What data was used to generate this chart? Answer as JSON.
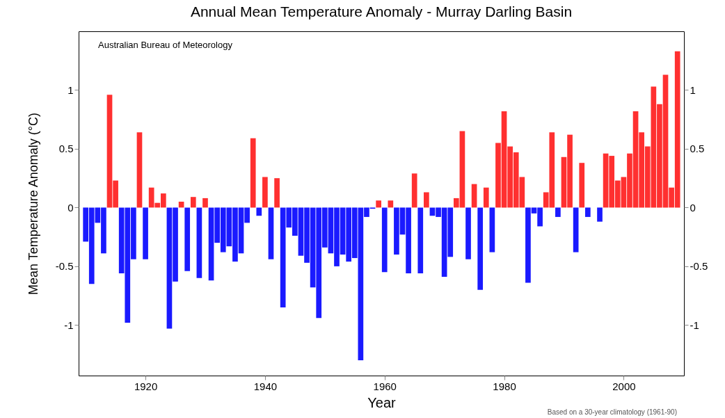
{
  "chart_data": {
    "type": "bar",
    "title": "Annual Mean Temperature Anomaly - Murray Darling Basin",
    "xlabel": "Year",
    "ylabel": "Mean Temperature Anomaly (°C)",
    "annotations": [
      "Australian Bureau of Meteorology",
      "Based on a 30-year climatology (1961-90)"
    ],
    "x": [
      1910,
      1911,
      1912,
      1913,
      1914,
      1915,
      1916,
      1917,
      1918,
      1919,
      1920,
      1921,
      1922,
      1923,
      1924,
      1925,
      1926,
      1927,
      1928,
      1929,
      1930,
      1931,
      1932,
      1933,
      1934,
      1935,
      1936,
      1937,
      1938,
      1939,
      1940,
      1941,
      1942,
      1943,
      1944,
      1945,
      1946,
      1947,
      1948,
      1949,
      1950,
      1951,
      1952,
      1953,
      1954,
      1955,
      1956,
      1957,
      1958,
      1959,
      1960,
      1961,
      1962,
      1963,
      1964,
      1965,
      1966,
      1967,
      1968,
      1969,
      1970,
      1971,
      1972,
      1973,
      1974,
      1975,
      1976,
      1977,
      1978,
      1979,
      1980,
      1981,
      1982,
      1983,
      1984,
      1985,
      1986,
      1987,
      1988,
      1989,
      1990,
      1991,
      1992,
      1993,
      1994,
      1995,
      1996,
      1997,
      1998,
      1999,
      2000,
      2001,
      2002,
      2003,
      2004,
      2005,
      2006,
      2007,
      2008,
      2009
    ],
    "values": [
      -0.29,
      -0.65,
      -0.13,
      -0.39,
      0.96,
      0.23,
      -0.56,
      -0.98,
      -0.44,
      0.64,
      -0.44,
      0.17,
      0.04,
      0.12,
      -1.03,
      -0.63,
      0.05,
      -0.54,
      0.09,
      -0.6,
      0.08,
      -0.62,
      -0.3,
      -0.38,
      -0.33,
      -0.46,
      -0.39,
      -0.13,
      0.59,
      -0.07,
      0.26,
      -0.44,
      0.25,
      -0.85,
      -0.17,
      -0.24,
      -0.41,
      -0.47,
      -0.68,
      -0.94,
      -0.34,
      -0.39,
      -0.5,
      -0.4,
      -0.46,
      -0.43,
      -1.3,
      -0.08,
      -0.01,
      0.06,
      -0.55,
      0.06,
      -0.4,
      -0.23,
      -0.56,
      0.29,
      -0.56,
      0.13,
      -0.07,
      -0.08,
      -0.59,
      -0.42,
      0.08,
      0.65,
      -0.44,
      0.2,
      -0.7,
      0.17,
      -0.38,
      0.55,
      0.82,
      0.52,
      0.47,
      0.26,
      -0.64,
      -0.05,
      -0.16,
      0.13,
      0.64,
      -0.08,
      0.43,
      0.62,
      -0.38,
      0.38,
      -0.08,
      0,
      -0.12,
      0.46,
      0.44,
      0.23,
      0.26,
      0.46,
      0.82,
      0.64,
      0.52,
      1.03,
      0.88,
      1.13,
      0.17,
      1.33
    ],
    "colors": [
      "#1a1aff",
      "#1a1aff",
      "#1a1aff",
      "#1a1aff",
      "#ff3030",
      "#ff3030",
      "#1a1aff",
      "#1a1aff",
      "#1a1aff",
      "#ff3030",
      "#1a1aff",
      "#ff3030",
      "#ff3030",
      "#ff3030",
      "#1a1aff",
      "#1a1aff",
      "#ff3030",
      "#1a1aff",
      "#ff3030",
      "#1a1aff",
      "#ff3030",
      "#1a1aff",
      "#1a1aff",
      "#1a1aff",
      "#1a1aff",
      "#1a1aff",
      "#1a1aff",
      "#1a1aff",
      "#ff3030",
      "#1a1aff",
      "#ff3030",
      "#1a1aff",
      "#ff3030",
      "#1a1aff",
      "#1a1aff",
      "#1a1aff",
      "#1a1aff",
      "#1a1aff",
      "#1a1aff",
      "#1a1aff",
      "#1a1aff",
      "#1a1aff",
      "#1a1aff",
      "#1a1aff",
      "#1a1aff",
      "#1a1aff",
      "#1a1aff",
      "#1a1aff",
      "#1a1aff",
      "#ff3030",
      "#1a1aff",
      "#ff3030",
      "#1a1aff",
      "#1a1aff",
      "#1a1aff",
      "#ff3030",
      "#1a1aff",
      "#ff3030",
      "#1a1aff",
      "#1a1aff",
      "#1a1aff",
      "#1a1aff",
      "#ff3030",
      "#ff3030",
      "#1a1aff",
      "#ff3030",
      "#1a1aff",
      "#ff3030",
      "#1a1aff",
      "#ff3030",
      "#ff3030",
      "#ff3030",
      "#ff3030",
      "#ff3030",
      "#1a1aff",
      "#1a1aff",
      "#1a1aff",
      "#ff3030",
      "#ff3030",
      "#1a1aff",
      "#ff3030",
      "#ff3030",
      "#1a1aff",
      "#ff3030",
      "#1a1aff",
      "#1a1aff",
      "#1a1aff",
      "#ff3030",
      "#ff3030",
      "#ff3030",
      "#ff3030",
      "#ff3030",
      "#ff3030",
      "#ff3030",
      "#ff3030",
      "#ff3030",
      "#ff3030",
      "#ff3030",
      "#ff3030",
      "#ff3030"
    ],
    "xlim": [
      1909.4,
      2009.5
    ],
    "xticks": [
      1920,
      1940,
      1960,
      1980,
      2000
    ],
    "ylim": [
      -1.43,
      1.5
    ],
    "yticks": [
      -1,
      -0.5,
      0,
      0.5,
      1
    ],
    "y2lim": [
      -1.43,
      1.5
    ],
    "y2ticks": [
      -1,
      -0.5,
      0,
      0.5,
      1
    ],
    "grid": false
  }
}
